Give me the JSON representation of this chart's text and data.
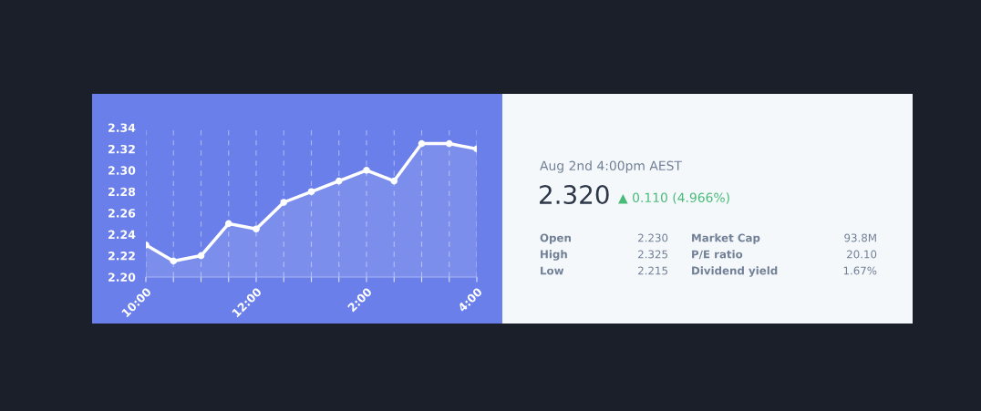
{
  "chart_data": [
    {
      "type": "area",
      "categories": [
        "10:00",
        null,
        null,
        null,
        "12:00",
        null,
        null,
        null,
        "2:00",
        null,
        null,
        null,
        "4:00"
      ],
      "series": [
        {
          "color": "#ffffff",
          "values": [
            2.23,
            2.215,
            2.22,
            2.25,
            2.245,
            2.27,
            2.28,
            2.29,
            2.3,
            2.29,
            2.325,
            2.325,
            2.32
          ]
        }
      ],
      "ylim": [
        2.2,
        2.34
      ],
      "yticks": [
        {
          "value": 2.2,
          "label": "2.20"
        },
        {
          "value": 2.22,
          "label": "2.22"
        },
        {
          "value": 2.24,
          "label": "2.24"
        },
        {
          "value": 2.26,
          "label": "2.26"
        },
        {
          "value": 2.28,
          "label": "2.28"
        },
        {
          "value": 2.3,
          "label": "2.30"
        },
        {
          "value": 2.32,
          "label": "2.32"
        },
        {
          "value": 2.34,
          "label": "2.34"
        }
      ],
      "grid": "x",
      "marker": "circle",
      "line_style": "solid"
    },
    {
      "type": "other",
      "annotations": [
        "Aug 2nd 4:00pm AEST",
        "2.320",
        "▲ 0.110 (4.966%)",
        "Open",
        "2.230",
        "Market Cap",
        "93.8M",
        "High",
        "2.325",
        "P/E ratio",
        "20.10",
        "Low",
        "2.215",
        "Dividend yield",
        "1.67%"
      ]
    }
  ]
}
